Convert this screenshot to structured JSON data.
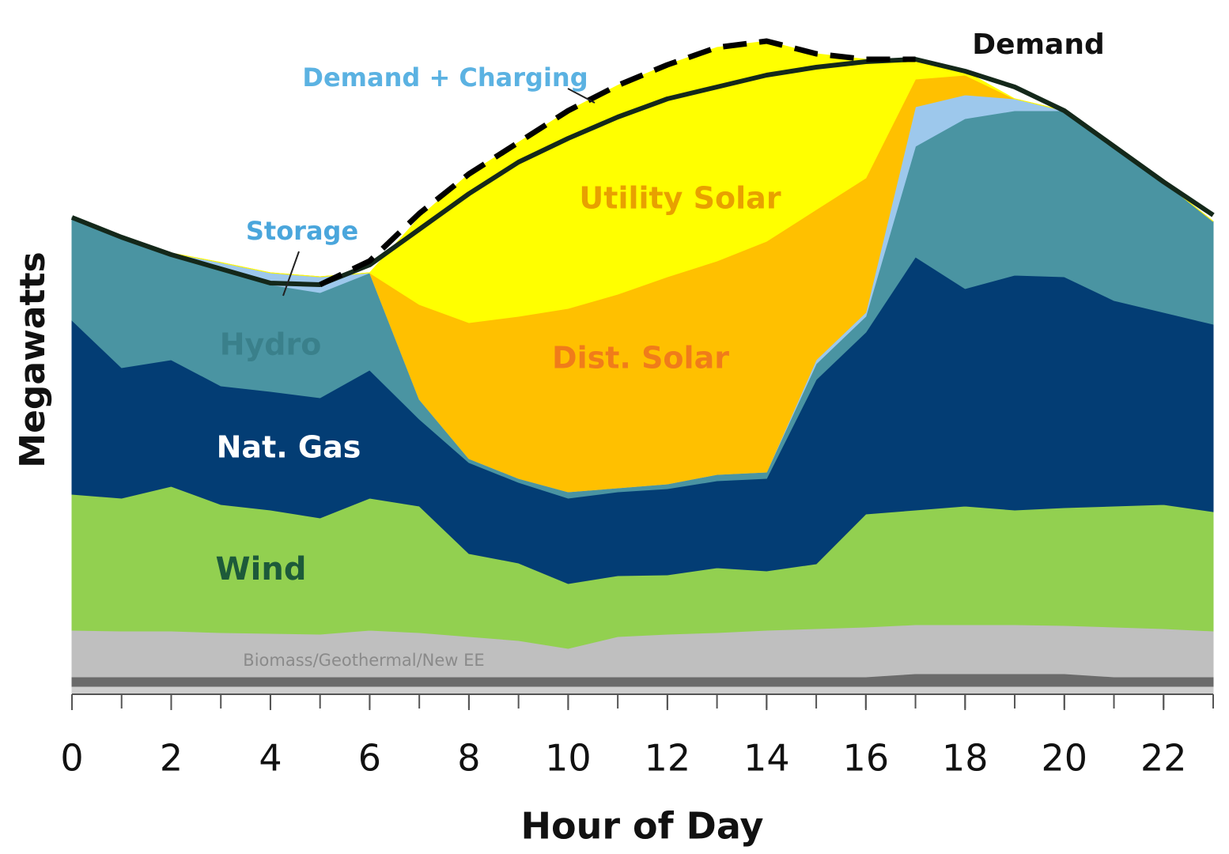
{
  "chart_data": {
    "type": "area",
    "x_label": "Hour of Day",
    "y_label": "Megawatts",
    "x": [
      0,
      1,
      2,
      3,
      4,
      5,
      6,
      7,
      8,
      9,
      10,
      11,
      12,
      13,
      14,
      15,
      16,
      17,
      18,
      19,
      20,
      21,
      22,
      23
    ],
    "xlim": [
      0,
      23
    ],
    "xticks": [
      0,
      2,
      4,
      6,
      8,
      10,
      12,
      14,
      16,
      18,
      20,
      22
    ],
    "ylim": [
      0,
      84
    ],
    "series": [
      {
        "color": "#cfcfcf",
        "values": [
          1,
          1,
          1,
          1,
          1,
          1,
          1,
          1,
          1,
          1,
          1,
          1,
          1,
          1,
          1,
          1,
          1,
          1,
          1,
          1,
          1,
          1,
          1,
          1
        ]
      },
      {
        "color": "#6b6b6b",
        "values": [
          1.2,
          1.2,
          1.2,
          1.2,
          1.2,
          1.2,
          1.2,
          1.2,
          1.2,
          1.2,
          1.2,
          1.2,
          1.2,
          1.2,
          1.2,
          1.2,
          1.2,
          1.6,
          1.6,
          1.6,
          1.6,
          1.2,
          1.2,
          1.2
        ]
      },
      {
        "name": "Biomass/Geothermal/New EE",
        "color": "#bfbfbf",
        "values": [
          5.9,
          5.8,
          5.8,
          5.6,
          5.5,
          5.4,
          5.9,
          5.6,
          5.1,
          4.6,
          3.6,
          5.1,
          5.4,
          5.6,
          5.9,
          6.1,
          6.3,
          6.2,
          6.2,
          6.2,
          6.1,
          6.3,
          6.1,
          5.8
        ]
      },
      {
        "name": "Wind",
        "color": "#92d050",
        "values": [
          17.2,
          16.8,
          18.3,
          16.2,
          15.6,
          14.7,
          16.7,
          16.0,
          10.5,
          9.8,
          8.2,
          7.7,
          7.5,
          8.2,
          7.5,
          8.2,
          14.3,
          14.5,
          15.0,
          14.5,
          14.9,
          15.3,
          15.7,
          15.1
        ]
      },
      {
        "name": "Nat. Gas",
        "color": "#033d74",
        "values": [
          22.0,
          16.5,
          16.0,
          15.0,
          15.0,
          15.2,
          16.2,
          11.0,
          11.5,
          10.2,
          10.8,
          10.6,
          10.9,
          11.0,
          11.7,
          23.3,
          23.0,
          32.0,
          27.5,
          29.7,
          29.2,
          26.0,
          24.3,
          23.7
        ]
      },
      {
        "name": "Hydro",
        "color": "#4a94a2",
        "values": [
          13.0,
          16.5,
          13.5,
          14.8,
          13.5,
          13.3,
          12.3,
          2.5,
          0.5,
          0.5,
          0.8,
          0.5,
          0.6,
          0.8,
          0.8,
          2.0,
          2.0,
          14.0,
          21.5,
          20.8,
          21.0,
          19.5,
          16.5,
          13.0
        ]
      },
      {
        "name": "Storage",
        "color": "#9dc8ec",
        "values": [
          0,
          0,
          0,
          0.8,
          1.5,
          2.0,
          0,
          0,
          0,
          0,
          0,
          0,
          0,
          0,
          0,
          0.5,
          0.5,
          5.0,
          3.0,
          1.5,
          0,
          0,
          0,
          0
        ]
      },
      {
        "name": "Dist. Solar",
        "color": "#ffc000",
        "values": [
          0,
          0,
          0,
          0,
          0,
          0,
          0,
          12.0,
          17.2,
          20.5,
          23.2,
          24.5,
          26.2,
          27.0,
          29.2,
          19.0,
          17.0,
          3.5,
          2.5,
          0,
          0,
          0,
          0,
          0
        ]
      },
      {
        "name": "Utility Solar",
        "color": "#ffff00",
        "values": [
          0,
          0,
          0,
          0,
          0,
          0,
          0,
          11.0,
          18.8,
          22.0,
          25.0,
          26.4,
          26.8,
          27.0,
          25.3,
          19.7,
          15.0,
          2.5,
          0.5,
          0,
          0,
          0,
          0,
          0
        ]
      }
    ],
    "lines": [
      {
        "name": "Demand",
        "color": "#14281a",
        "values": [
          60.3,
          57.8,
          55.6,
          53.8,
          52.0,
          51.8,
          54.3,
          58.8,
          63.3,
          67.3,
          70.3,
          73.0,
          75.3,
          76.8,
          78.3,
          79.3,
          80.0,
          80.3,
          78.8,
          76.8,
          73.8,
          69.3,
          64.8,
          60.6
        ]
      },
      {
        "name": "Demand + Charging",
        "color": "#000000",
        "dashed": true,
        "values": [
          null,
          null,
          null,
          null,
          null,
          51.8,
          54.8,
          60.8,
          65.8,
          69.8,
          73.8,
          77.0,
          79.6,
          81.8,
          82.6,
          81.0,
          80.3,
          80.3,
          null,
          null,
          null,
          null,
          null,
          null
        ]
      }
    ]
  }
}
